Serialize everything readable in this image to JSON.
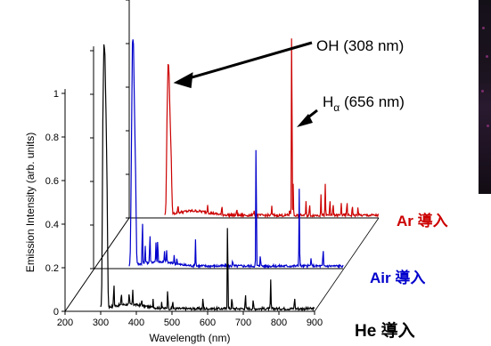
{
  "chart_data": {
    "type": "line",
    "layout": "3d-waterfall",
    "xlabel": "Wavelength (nm)",
    "ylabel": "Emission Intensity (arb. units)",
    "xlim": [
      200,
      900
    ],
    "ylim": [
      0,
      1.05
    ],
    "x_ticks": [
      "200",
      "300",
      "400",
      "500",
      "600",
      "700",
      "800",
      "900"
    ],
    "y_ticks": [
      "0",
      "0.2",
      "0.4",
      "0.6",
      "0.8",
      "1"
    ],
    "y_tick_values": [
      0,
      0.2,
      0.4,
      0.6,
      0.8,
      1.0
    ],
    "series": [
      {
        "name": "He 導入",
        "color": "#000000",
        "peaks": [
          {
            "x": 306,
            "y": 0.7
          },
          {
            "x": 309,
            "y": 0.96
          },
          {
            "x": 312,
            "y": 0.9
          },
          {
            "x": 315,
            "y": 0.68
          },
          {
            "x": 318,
            "y": 0.44
          },
          {
            "x": 337,
            "y": 0.12
          },
          {
            "x": 358,
            "y": 0.06
          },
          {
            "x": 380,
            "y": 0.05
          },
          {
            "x": 390,
            "y": 0.07
          },
          {
            "x": 415,
            "y": 0.03
          },
          {
            "x": 447,
            "y": 0.04
          },
          {
            "x": 471,
            "y": 0.03
          },
          {
            "x": 488,
            "y": 0.1
          },
          {
            "x": 502,
            "y": 0.04
          },
          {
            "x": 587,
            "y": 0.05
          },
          {
            "x": 656,
            "y": 0.46
          },
          {
            "x": 668,
            "y": 0.06
          },
          {
            "x": 706,
            "y": 0.07
          },
          {
            "x": 728,
            "y": 0.04
          },
          {
            "x": 777,
            "y": 0.13
          },
          {
            "x": 844,
            "y": 0.06
          }
        ]
      },
      {
        "name": "Air 導入",
        "color": "#0000cc",
        "peaks": [
          {
            "x": 306,
            "y": 0.38
          },
          {
            "x": 309,
            "y": 0.83
          },
          {
            "x": 312,
            "y": 0.8
          },
          {
            "x": 315,
            "y": 0.52
          },
          {
            "x": 318,
            "y": 0.34
          },
          {
            "x": 337,
            "y": 0.22
          },
          {
            "x": 345,
            "y": 0.08
          },
          {
            "x": 358,
            "y": 0.14
          },
          {
            "x": 375,
            "y": 0.09
          },
          {
            "x": 380,
            "y": 0.11
          },
          {
            "x": 399,
            "y": 0.05
          },
          {
            "x": 405,
            "y": 0.06
          },
          {
            "x": 426,
            "y": 0.04
          },
          {
            "x": 434,
            "y": 0.03
          },
          {
            "x": 486,
            "y": 0.12
          },
          {
            "x": 590,
            "y": 0.03
          },
          {
            "x": 656,
            "y": 0.65
          },
          {
            "x": 668,
            "y": 0.06
          },
          {
            "x": 777,
            "y": 0.36
          },
          {
            "x": 810,
            "y": 0.04
          },
          {
            "x": 844,
            "y": 0.08
          }
        ]
      },
      {
        "name": "Ar 導入",
        "color": "#cc0000",
        "peaks": [
          {
            "x": 306,
            "y": 0.35
          },
          {
            "x": 309,
            "y": 0.56
          },
          {
            "x": 312,
            "y": 0.5
          },
          {
            "x": 315,
            "y": 0.32
          },
          {
            "x": 318,
            "y": 0.2
          },
          {
            "x": 337,
            "y": 0.04
          },
          {
            "x": 420,
            "y": 0.04
          },
          {
            "x": 460,
            "y": 0.04
          },
          {
            "x": 502,
            "y": 0.03
          },
          {
            "x": 550,
            "y": 0.03
          },
          {
            "x": 600,
            "y": 0.04
          },
          {
            "x": 650,
            "y": 0.03
          },
          {
            "x": 656,
            "y": 1.0
          },
          {
            "x": 660,
            "y": 0.14
          },
          {
            "x": 696,
            "y": 0.06
          },
          {
            "x": 706,
            "y": 0.05
          },
          {
            "x": 738,
            "y": 0.1
          },
          {
            "x": 750,
            "y": 0.14
          },
          {
            "x": 763,
            "y": 0.08
          },
          {
            "x": 772,
            "y": 0.06
          },
          {
            "x": 795,
            "y": 0.06
          },
          {
            "x": 811,
            "y": 0.07
          },
          {
            "x": 826,
            "y": 0.05
          },
          {
            "x": 842,
            "y": 0.04
          }
        ]
      }
    ],
    "annotations": [
      {
        "text": "OH (308 nm)",
        "target_series": "Ar 導入",
        "target_x": 309
      },
      {
        "text_main": "H",
        "text_sub": "α",
        "text_rest": " (656 nm)",
        "target_series": "Ar 導入",
        "target_x": 656
      }
    ]
  }
}
